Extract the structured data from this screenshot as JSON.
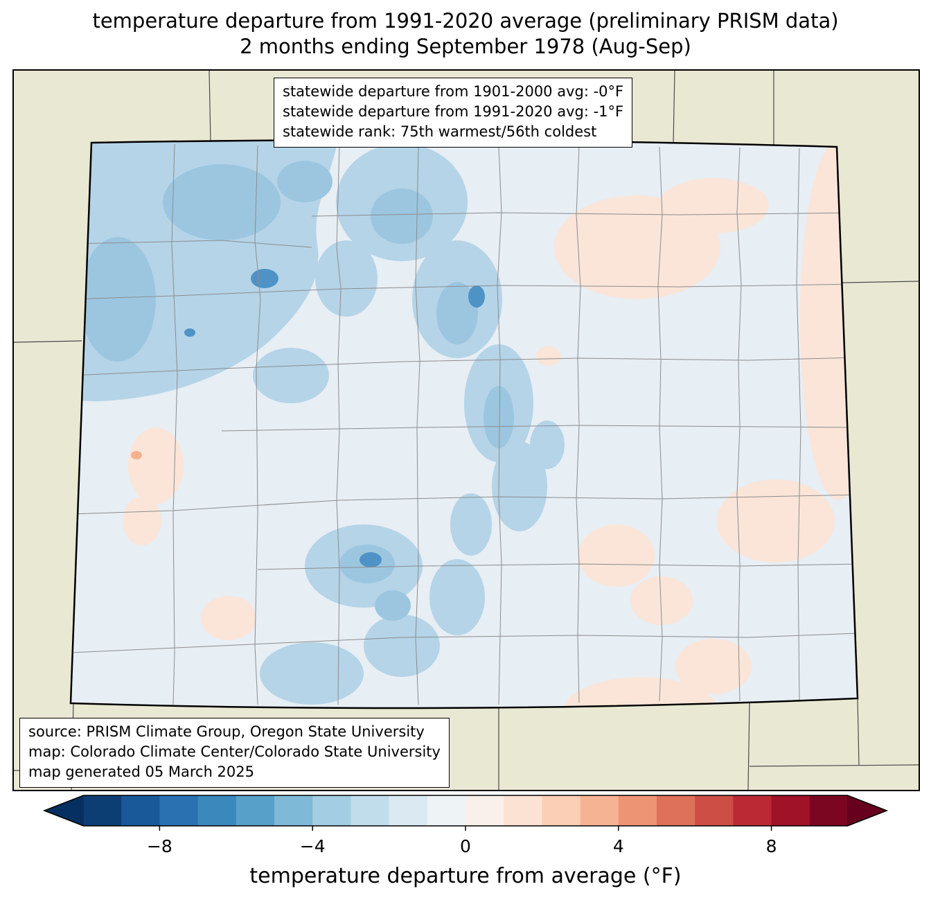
{
  "figure": {
    "title_line1": "temperature departure from 1991-2020 average (preliminary PRISM data)",
    "title_line2": "2 months ending September 1978 (Aug-Sep)"
  },
  "stats_box": {
    "line1": "statewide departure from 1901-2000 avg: -0°F",
    "line2": "statewide departure from 1991-2020 avg: -1°F",
    "line3": "statewide rank: 75th warmest/56th coldest"
  },
  "source_box": {
    "line1": "source: PRISM Climate Group, Oregon State University",
    "line2": "map: Colorado Climate Center/Colorado State University",
    "line3": "map generated 05 March 2025"
  },
  "colorbar": {
    "label": "temperature departure from average (°F)",
    "tick_labels": [
      "−8",
      "−4",
      "0",
      "4",
      "8"
    ],
    "tick_values": [
      -8,
      -4,
      0,
      4,
      8
    ],
    "range_min": -10,
    "range_max": 10,
    "left_arrow_color": "#053061",
    "right_arrow_color": "#67001f",
    "segment_colors": [
      "#0c3e74",
      "#1a5999",
      "#2a71b2",
      "#3b88bd",
      "#57a0ca",
      "#7eb9d7",
      "#a2cde3",
      "#c1ddec",
      "#dbeaf2",
      "#eef3f5",
      "#f9f0eb",
      "#fce2d3",
      "#fbceb6",
      "#f6b393",
      "#ed9475",
      "#de715a",
      "#cd4e45",
      "#bb2a34",
      "#9f1228",
      "#7a0622"
    ]
  },
  "map": {
    "region": "Colorado",
    "outside_fill": "#e9e8d3",
    "state_base_fill": "#e7eef4",
    "cool_fill": "#b5d4e8",
    "cool_medium_fill": "#9cc6e0",
    "cool_dark_fill": "#4f93c6",
    "warm_fill": "#fae5d8",
    "warm_strong_fill": "#f5b08d",
    "county_line_color": "#8c8c8c",
    "state_border_color": "#000000"
  },
  "chart_data": {
    "type": "heatmap",
    "subtype": "geographic temperature anomaly map of Colorado with county boundaries",
    "title": "temperature departure from 1991-2020 average (preliminary PRISM data)",
    "subtitle": "2 months ending September 1978 (Aug-Sep)",
    "colorbar_label": "temperature departure from average (°F)",
    "colorbar_ticks": [
      -8,
      -4,
      0,
      4,
      8
    ],
    "colorbar_range": [
      -10,
      10
    ],
    "statewide_departure_from_1901_2000_avg_F": "-0",
    "statewide_departure_from_1991_2020_avg_F": "-1",
    "statewide_rank": "75th warmest/56th coldest",
    "pattern_summary": "mostly slightly cooler than average (light blue) statewide, strongest cooling in northwest and central mountains; faint warm (pink) patches on eastern plains and far east border"
  }
}
